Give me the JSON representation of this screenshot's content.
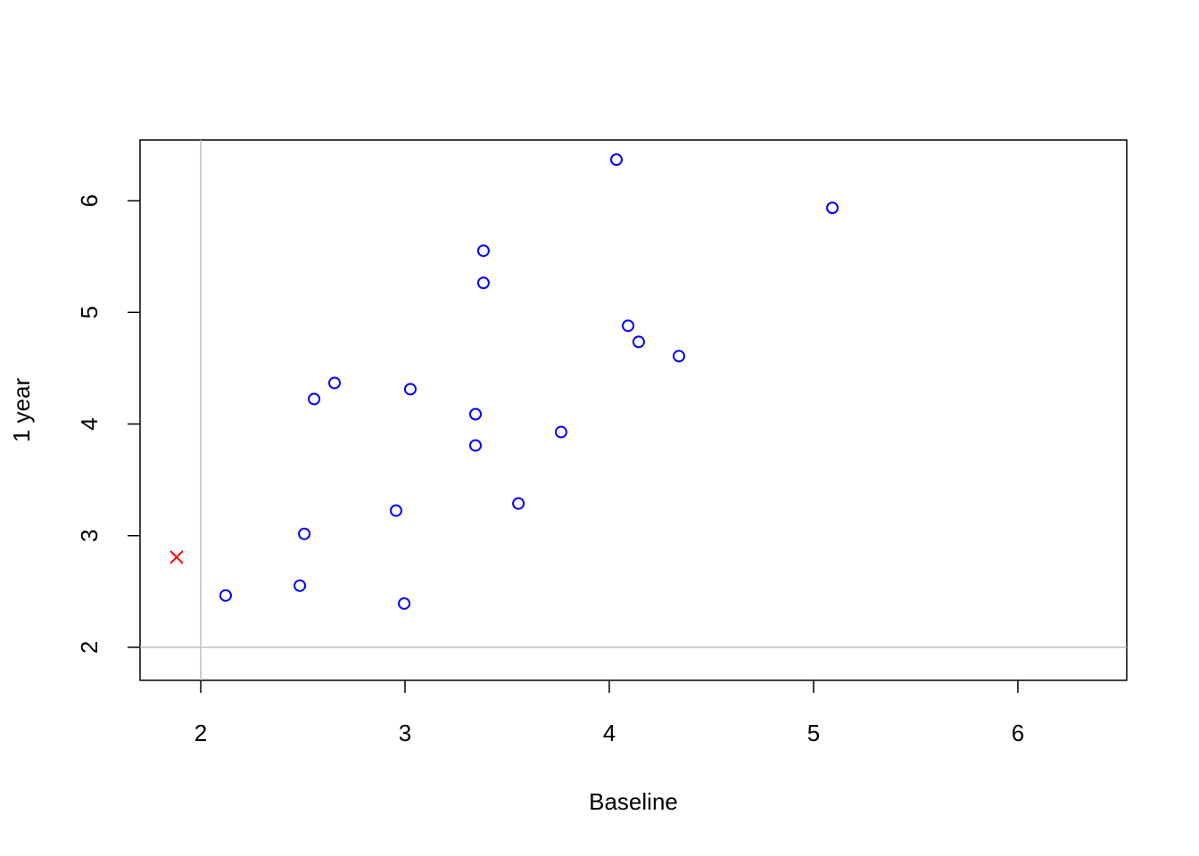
{
  "chart_data": {
    "type": "scatter",
    "x_label": "Baseline",
    "y_label": "1 year",
    "xlim": [
      1.703,
      6.533
    ],
    "ylim": [
      1.704,
      6.544
    ],
    "xticks": [
      2,
      3,
      4,
      5,
      6
    ],
    "yticks": [
      2,
      3,
      4,
      5,
      6
    ],
    "vline": 2,
    "hline": 2,
    "ref_line_color": "#bebebe",
    "series": [
      {
        "color": "#0000ff",
        "marker": "circle",
        "x": [
          4.035,
          5.092,
          3.384,
          3.384,
          4.092,
          4.144,
          4.341,
          2.655,
          2.555,
          3.026,
          3.345,
          3.345,
          3.764,
          3.555,
          2.956,
          2.507,
          2.485,
          2.122,
          2.996
        ],
        "values": [
          6.368,
          5.936,
          5.552,
          5.264,
          4.88,
          4.736,
          4.608,
          4.368,
          4.224,
          4.312,
          4.088,
          3.808,
          3.928,
          3.288,
          3.224,
          3.016,
          2.552,
          2.464,
          2.392
        ]
      },
      {
        "color": "#ff0000",
        "marker": "x",
        "x": [
          1.882
        ],
        "values": [
          2.808
        ]
      }
    ]
  }
}
